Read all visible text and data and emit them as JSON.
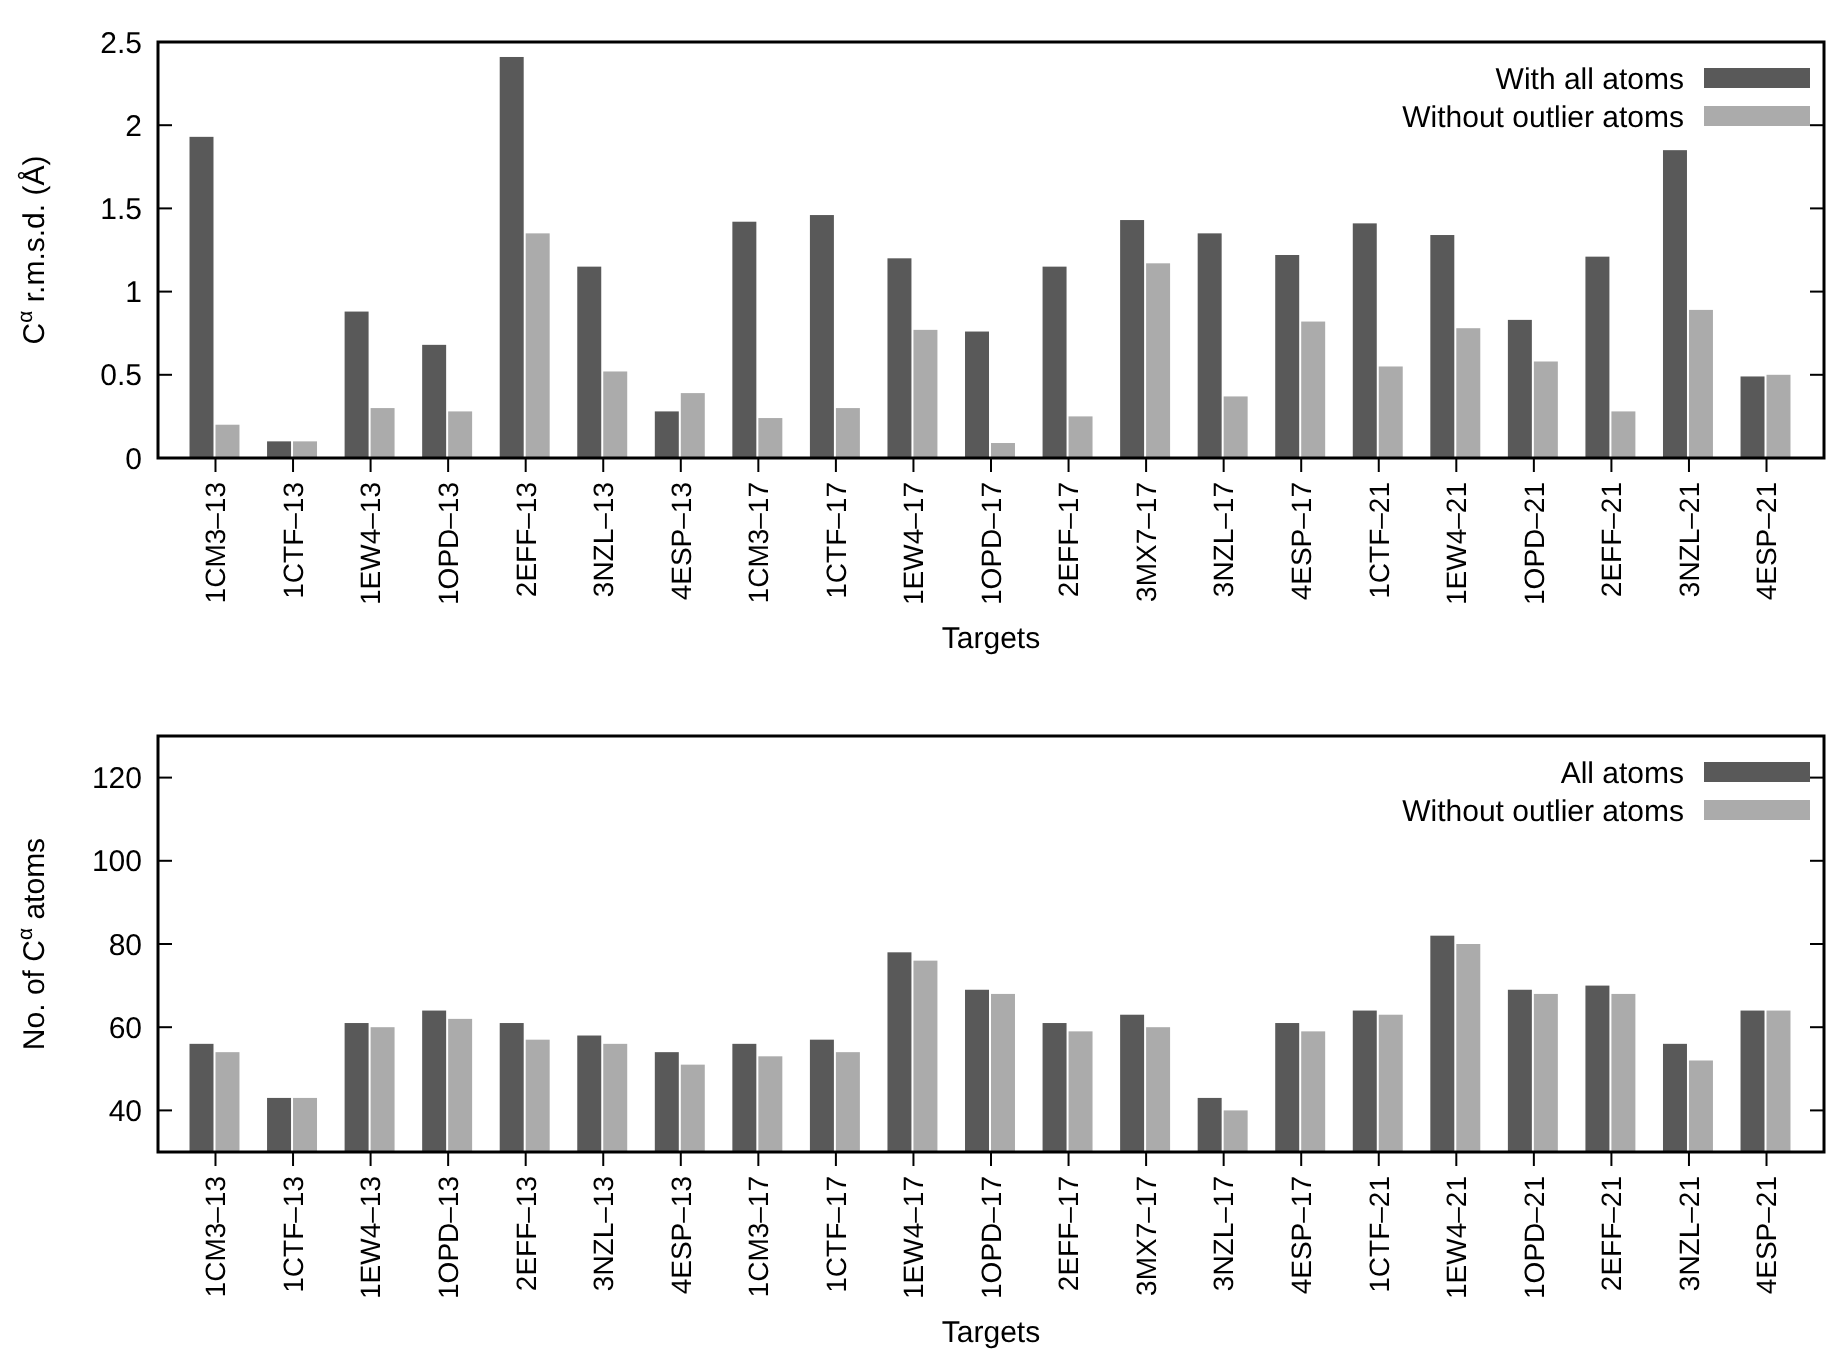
{
  "chart_data": [
    {
      "type": "bar",
      "xlabel": "Targets",
      "ylabel": "C$^{α}$ r.m.s.d. (Å)",
      "categories": [
        "1CM3–13",
        "1CTF–13",
        "1EW4–13",
        "1OPD–13",
        "2EFF–13",
        "3NZL–13",
        "4ESP–13",
        "1CM3–17",
        "1CTF–17",
        "1EW4–17",
        "1OPD–17",
        "2EFF–17",
        "3MX7–17",
        "3NZL–17",
        "4ESP–17",
        "1CTF–21",
        "1EW4–21",
        "1OPD–21",
        "2EFF–21",
        "3NZL–21",
        "4ESP–21"
      ],
      "series": [
        {
          "name": "With all atoms",
          "color": "#595959",
          "values": [
            1.93,
            0.1,
            0.88,
            0.68,
            2.41,
            1.15,
            0.28,
            1.42,
            1.46,
            1.2,
            0.76,
            1.15,
            1.43,
            1.35,
            1.22,
            1.41,
            1.34,
            0.83,
            1.21,
            1.85,
            0.49
          ]
        },
        {
          "name": "Without outlier atoms",
          "color": "#ababab",
          "values": [
            0.2,
            0.1,
            0.3,
            0.28,
            1.35,
            0.52,
            0.39,
            0.24,
            0.3,
            0.77,
            0.09,
            0.25,
            1.17,
            0.37,
            0.82,
            0.55,
            0.78,
            0.58,
            0.28,
            0.89,
            0.5
          ]
        }
      ],
      "ylim": [
        0,
        2.5
      ],
      "yticks": [
        0,
        0.5,
        1,
        1.5,
        2,
        2.5
      ],
      "legend": "top right",
      "grid": false
    },
    {
      "type": "bar",
      "xlabel": "Targets",
      "ylabel": "No. of C$^{α}$ atoms",
      "categories": [
        "1CM3–13",
        "1CTF–13",
        "1EW4–13",
        "1OPD–13",
        "2EFF–13",
        "3NZL–13",
        "4ESP–13",
        "1CM3–17",
        "1CTF–17",
        "1EW4–17",
        "1OPD–17",
        "2EFF–17",
        "3MX7–17",
        "3NZL–17",
        "4ESP–17",
        "1CTF–21",
        "1EW4–21",
        "1OPD–21",
        "2EFF–21",
        "3NZL–21",
        "4ESP–21"
      ],
      "series": [
        {
          "name": "All atoms",
          "color": "#595959",
          "values": [
            56,
            43,
            61,
            64,
            61,
            58,
            54,
            56,
            57,
            78,
            69,
            61,
            63,
            43,
            61,
            64,
            82,
            69,
            70,
            56,
            64
          ]
        },
        {
          "name": "Without outlier atoms",
          "color": "#ababab",
          "values": [
            54,
            43,
            60,
            62,
            57,
            56,
            51,
            53,
            54,
            76,
            68,
            59,
            60,
            40,
            59,
            63,
            80,
            68,
            68,
            52,
            64
          ]
        }
      ],
      "ylim": [
        30,
        130
      ],
      "yticks": [
        40,
        60,
        80,
        100,
        120
      ],
      "legend": "top right",
      "grid": false
    }
  ]
}
